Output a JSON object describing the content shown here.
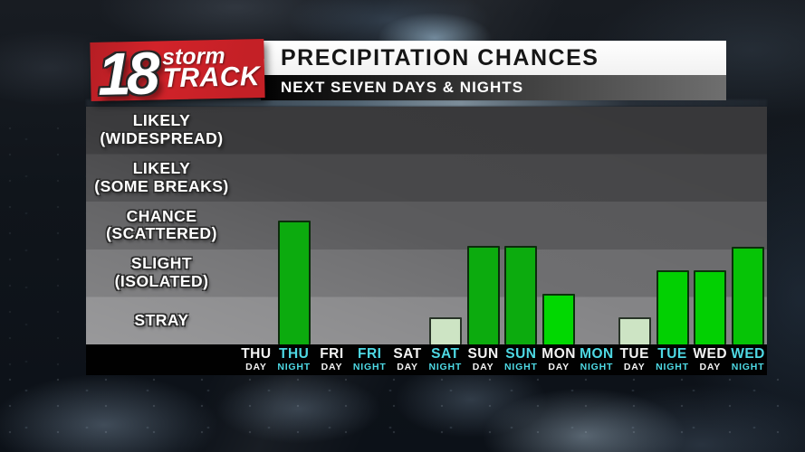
{
  "logo": {
    "number": "18",
    "storm": "storm",
    "track": "TRACK",
    "bg_color": "#c52127"
  },
  "header": {
    "title": "PRECIPITATION CHANCES",
    "subtitle": "NEXT SEVEN DAYS & NIGHTS"
  },
  "chart_data": {
    "type": "bar",
    "title": "PRECIPITATION CHANCES",
    "subtitle": "NEXT SEVEN DAYS & NIGHTS",
    "y_axis_bands_top_to_bottom": [
      {
        "line1": "LIKELY",
        "line2": "(WIDESPREAD)",
        "level": 5
      },
      {
        "line1": "LIKELY",
        "line2": "(SOME BREAKS)",
        "level": 4
      },
      {
        "line1": "CHANCE",
        "line2": "(SCATTERED)",
        "level": 3
      },
      {
        "line1": "SLIGHT",
        "line2": "(ISOLATED)",
        "level": 2
      },
      {
        "line1": "STRAY",
        "line2": "",
        "level": 1
      }
    ],
    "value_scale": "0-5 band units; each horizontal band = 1 unit, 0 = no bar",
    "ylim": [
      0,
      5
    ],
    "grid": "horizontal shaded bands, no gridlines",
    "legend_position": "none",
    "columns": [
      {
        "day": "THU",
        "period": "DAY",
        "value": 0,
        "color": null
      },
      {
        "day": "THU",
        "period": "NIGHT",
        "value": 2.6,
        "color": "#0cab0e"
      },
      {
        "day": "FRI",
        "period": "DAY",
        "value": 0,
        "color": null
      },
      {
        "day": "FRI",
        "period": "NIGHT",
        "value": 0,
        "color": null
      },
      {
        "day": "SAT",
        "period": "DAY",
        "value": 0,
        "color": null
      },
      {
        "day": "SAT",
        "period": "NIGHT",
        "value": 0.57,
        "color": "#cde4c4"
      },
      {
        "day": "SUN",
        "period": "DAY",
        "value": 2.07,
        "color": "#0cab0e"
      },
      {
        "day": "SUN",
        "period": "NIGHT",
        "value": 2.07,
        "color": "#0cab0e"
      },
      {
        "day": "MON",
        "period": "DAY",
        "value": 1.06,
        "color": "#01d801"
      },
      {
        "day": "MON",
        "period": "NIGHT",
        "value": 0,
        "color": null
      },
      {
        "day": "TUE",
        "period": "DAY",
        "value": 0.57,
        "color": "#cde4c4"
      },
      {
        "day": "TUE",
        "period": "NIGHT",
        "value": 1.56,
        "color": "#02d002"
      },
      {
        "day": "WED",
        "period": "DAY",
        "value": 1.56,
        "color": "#02d002"
      },
      {
        "day": "WED",
        "period": "NIGHT",
        "value": 2.05,
        "color": "#06c406"
      }
    ],
    "day_label_color": "#f4f4f4",
    "night_label_color": "#4ed9e4"
  },
  "colors": {
    "logo_red": "#c52127",
    "title_bar_bg": "#ffffff",
    "title_text": "#161616",
    "subtitle_bar_gradient": [
      "#030303",
      "#6f6f6f"
    ],
    "band_grays_top_to_bottom": [
      "#3b3b3d",
      "#49494b",
      "#5b5b5d",
      "#6e6e70",
      "#848486"
    ],
    "axis_strip_bg": "#010101"
  }
}
